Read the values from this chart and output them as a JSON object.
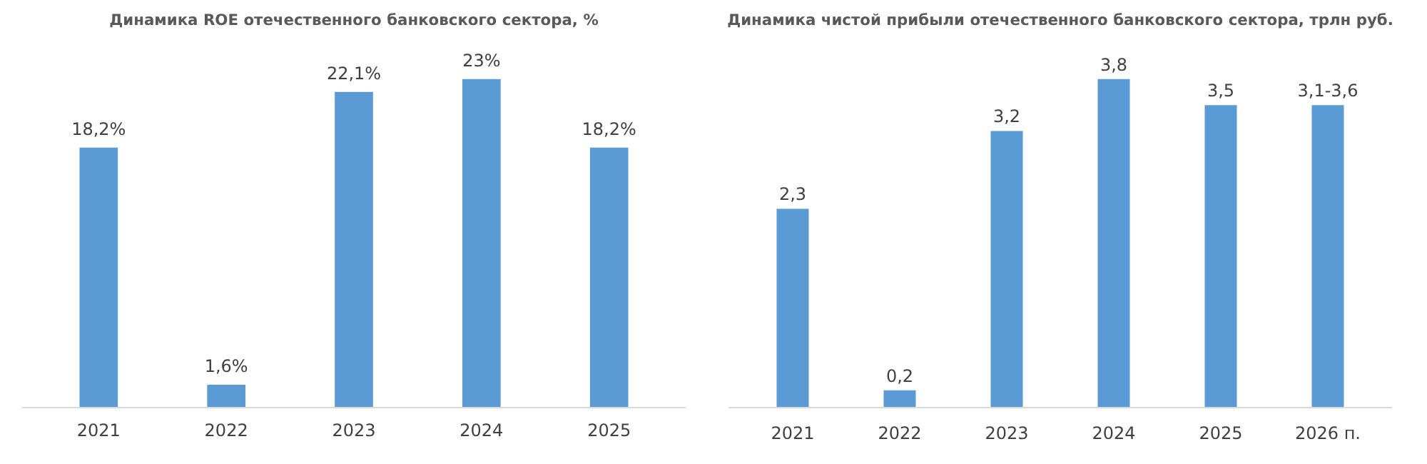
{
  "chart_data": [
    {
      "type": "bar",
      "title": "Динамика ROE отечественного банковского сектора, %",
      "categories": [
        "2021",
        "2022",
        "2023",
        "2024",
        "2025"
      ],
      "values": [
        18.2,
        1.6,
        22.1,
        23,
        18.2
      ],
      "color": "#5b9bd5",
      "value_labels": [
        "18,2%",
        "1,6%",
        "22,1%",
        "23%",
        "18,2%"
      ],
      "grid": false,
      "tick_labels": "x"
    },
    {
      "type": "bar",
      "title": "Динамика чистой прибыли отечественного банковского сектора, трлн руб.",
      "categories": [
        "2021",
        "2022",
        "2023",
        "2024",
        "2025",
        "2026 п."
      ],
      "values": [
        2.3,
        0.2,
        3.2,
        3.8,
        3.5,
        3.5
      ],
      "color": "#5b9bd5",
      "value_labels": [
        "2,3",
        "0,2",
        "3,2",
        "3,8",
        "3,5",
        "3,1-3,6"
      ],
      "grid": false,
      "tick_labels": "x"
    }
  ]
}
